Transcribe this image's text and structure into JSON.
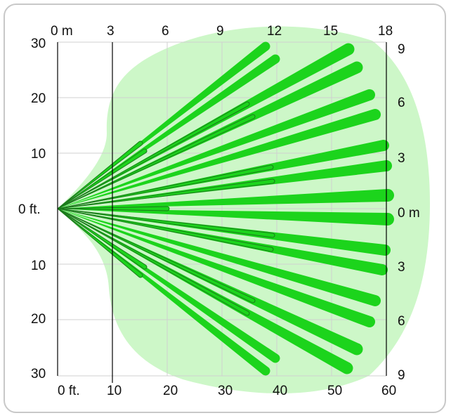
{
  "labels": {
    "top_meters": [
      "0 m",
      "3",
      "6",
      "9",
      "12",
      "15",
      "18"
    ],
    "bottom_feet": [
      "0 ft.",
      "10",
      "20",
      "30",
      "40",
      "50",
      "60"
    ],
    "left_feet": [
      "30",
      "20",
      "10",
      "0 ft.",
      "10",
      "20",
      "30"
    ],
    "right_meters": [
      "9",
      "6",
      "3",
      "0 m",
      "3",
      "6",
      "9"
    ]
  },
  "colors": {
    "coverage_area": "#cdf7c8",
    "beam": "#1cd41c",
    "beam_outline": "#1a7a1a",
    "grid": "#d0d0d0",
    "axis": "#000000"
  }
}
